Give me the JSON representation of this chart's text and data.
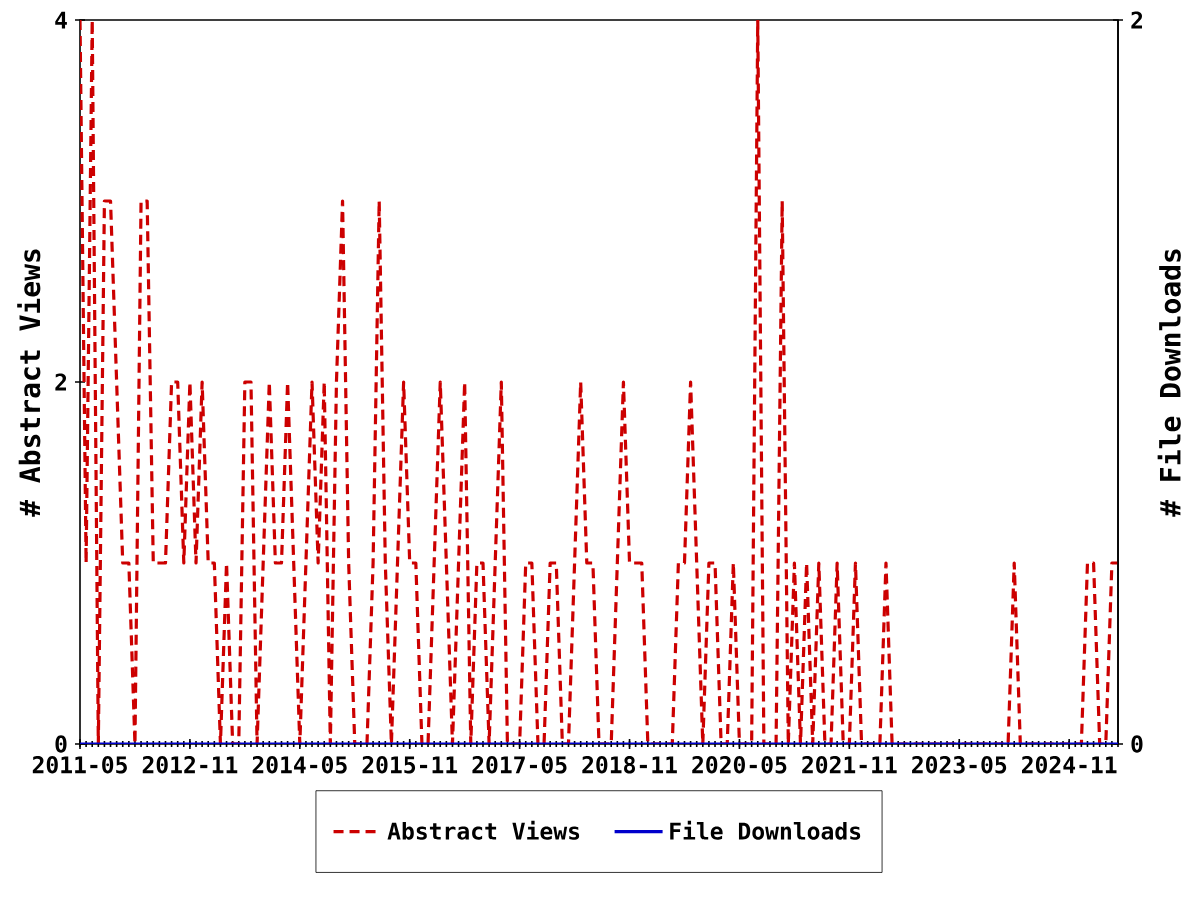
{
  "chart_data": {
    "type": "line",
    "ylabel": "# Abstract Views",
    "y2label": "# File Downloads",
    "x": [
      "2011-05",
      "2011-06",
      "2011-07",
      "2011-08",
      "2011-09",
      "2011-10",
      "2011-11",
      "2011-12",
      "2012-01",
      "2012-02",
      "2012-03",
      "2012-04",
      "2012-05",
      "2012-06",
      "2012-07",
      "2012-08",
      "2012-09",
      "2012-10",
      "2012-11",
      "2012-12",
      "2013-01",
      "2013-02",
      "2013-03",
      "2013-04",
      "2013-05",
      "2013-06",
      "2013-07",
      "2013-08",
      "2013-09",
      "2013-10",
      "2013-11",
      "2013-12",
      "2014-01",
      "2014-02",
      "2014-03",
      "2014-04",
      "2014-05",
      "2014-06",
      "2014-07",
      "2014-08",
      "2014-09",
      "2014-10",
      "2014-11",
      "2014-12",
      "2015-01",
      "2015-02",
      "2015-03",
      "2015-04",
      "2015-05",
      "2015-06",
      "2015-07",
      "2015-08",
      "2015-09",
      "2015-10",
      "2015-11",
      "2015-12",
      "2016-01",
      "2016-02",
      "2016-03",
      "2016-04",
      "2016-05",
      "2016-06",
      "2016-07",
      "2016-08",
      "2016-09",
      "2016-10",
      "2016-11",
      "2016-12",
      "2017-01",
      "2017-02",
      "2017-03",
      "2017-04",
      "2017-05",
      "2017-06",
      "2017-07",
      "2017-08",
      "2017-09",
      "2017-10",
      "2017-11",
      "2017-12",
      "2018-01",
      "2018-02",
      "2018-03",
      "2018-04",
      "2018-05",
      "2018-06",
      "2018-07",
      "2018-08",
      "2018-09",
      "2018-10",
      "2018-11",
      "2018-12",
      "2019-01",
      "2019-02",
      "2019-03",
      "2019-04",
      "2019-05",
      "2019-06",
      "2019-07",
      "2019-08",
      "2019-09",
      "2019-10",
      "2019-11",
      "2019-12",
      "2020-01",
      "2020-02",
      "2020-03",
      "2020-04",
      "2020-05",
      "2020-06",
      "2020-07",
      "2020-08",
      "2020-09",
      "2020-10",
      "2020-11",
      "2020-12",
      "2021-01",
      "2021-02",
      "2021-03",
      "2021-04",
      "2021-05",
      "2021-06",
      "2021-07",
      "2021-08",
      "2021-09",
      "2021-10",
      "2021-11",
      "2021-12",
      "2022-01",
      "2022-02",
      "2022-03",
      "2022-04",
      "2022-05",
      "2022-06",
      "2022-07",
      "2022-08",
      "2022-09",
      "2022-10",
      "2022-11",
      "2022-12",
      "2023-01",
      "2023-02",
      "2023-03",
      "2023-04",
      "2023-05",
      "2023-06",
      "2023-07",
      "2023-08",
      "2023-09",
      "2023-10",
      "2023-11",
      "2023-12",
      "2024-01",
      "2024-02",
      "2024-03",
      "2024-04",
      "2024-05",
      "2024-06",
      "2024-07",
      "2024-08",
      "2024-09",
      "2024-10",
      "2024-11",
      "2024-12",
      "2025-01",
      "2025-02",
      "2025-03",
      "2025-04",
      "2025-05",
      "2025-06",
      "2025-07"
    ],
    "xlim": [
      "2011-05",
      "2025-07"
    ],
    "xticks": [
      "2011-05",
      "2012-11",
      "2014-05",
      "2015-11",
      "2017-05",
      "2018-11",
      "2020-05",
      "2021-11",
      "2023-05",
      "2024-11"
    ],
    "ylim": [
      0,
      4
    ],
    "yticks": [
      0,
      2,
      4
    ],
    "y2lim": [
      0,
      2
    ],
    "y2ticks": [
      0,
      2
    ],
    "legend": "bottom",
    "series": [
      {
        "name": "Abstract Views",
        "color": "#cc0000",
        "line_style": "dashed",
        "values": [
          4,
          1,
          4,
          0,
          3,
          3,
          2,
          1,
          1,
          0,
          3,
          3,
          1,
          1,
          1,
          2,
          2,
          1,
          2,
          1,
          2,
          1,
          1,
          0,
          1,
          0,
          0,
          2,
          2,
          0,
          1,
          2,
          1,
          1,
          2,
          1,
          0,
          1,
          2,
          1,
          2,
          0,
          2,
          3,
          1,
          0,
          0,
          0,
          1,
          3,
          1,
          0,
          1,
          2,
          1,
          1,
          0,
          0,
          1,
          2,
          1,
          0,
          1,
          2,
          0,
          1,
          1,
          0,
          1,
          2,
          0,
          0,
          0,
          1,
          1,
          0,
          0,
          1,
          1,
          0,
          0,
          1,
          2,
          1,
          1,
          0,
          0,
          0,
          1,
          2,
          1,
          1,
          1,
          0,
          0,
          0,
          0,
          0,
          1,
          1,
          2,
          1,
          0,
          1,
          1,
          0,
          0,
          1,
          0,
          0,
          0,
          4,
          0,
          0,
          0,
          3,
          0,
          1,
          0,
          1,
          0,
          1,
          0,
          0,
          1,
          0,
          0,
          1,
          0,
          0,
          0,
          0,
          1,
          0,
          0,
          0,
          0,
          0,
          0,
          0,
          0,
          0,
          0,
          0,
          0,
          0,
          0,
          0,
          0,
          0,
          0,
          0,
          0,
          1,
          0,
          0,
          0,
          0,
          0,
          0,
          0,
          0,
          0,
          0,
          0,
          1,
          1,
          0,
          0,
          1,
          1
        ]
      },
      {
        "name": "File Downloads",
        "color": "#0000cc",
        "line_style": "solid",
        "axis": "y2",
        "values": [
          0,
          0,
          0,
          0,
          0,
          0,
          0,
          0,
          0,
          0,
          0,
          0,
          0,
          0,
          0,
          0,
          0,
          0,
          0,
          0,
          0,
          0,
          0,
          0,
          0,
          0,
          0,
          0,
          0,
          0,
          0,
          0,
          0,
          0,
          0,
          0,
          0,
          0,
          0,
          0,
          0,
          0,
          0,
          0,
          0,
          0,
          0,
          0,
          0,
          0,
          0,
          0,
          0,
          0,
          0,
          0,
          0,
          0,
          0,
          0,
          0,
          0,
          0,
          0,
          0,
          0,
          0,
          0,
          0,
          0,
          0,
          0,
          0,
          0,
          0,
          0,
          0,
          0,
          0,
          0,
          0,
          0,
          0,
          0,
          0,
          0,
          0,
          0,
          0,
          0,
          0,
          0,
          0,
          0,
          0,
          0,
          0,
          0,
          0,
          0,
          0,
          0,
          0,
          0,
          0,
          0,
          0,
          0,
          0,
          0,
          0,
          0,
          0,
          0,
          0,
          0,
          0,
          0,
          0,
          0,
          0,
          0,
          0,
          0,
          0,
          0,
          0,
          0,
          0,
          0,
          0,
          0,
          0,
          0,
          0,
          0,
          0,
          0,
          0,
          0,
          0,
          0,
          0,
          0,
          0,
          0,
          0,
          0,
          0,
          0,
          0,
          0,
          0,
          0,
          0,
          0,
          0,
          0,
          0,
          0,
          0,
          0,
          0,
          0,
          0,
          0,
          0,
          0,
          0,
          0,
          0
        ]
      }
    ]
  }
}
